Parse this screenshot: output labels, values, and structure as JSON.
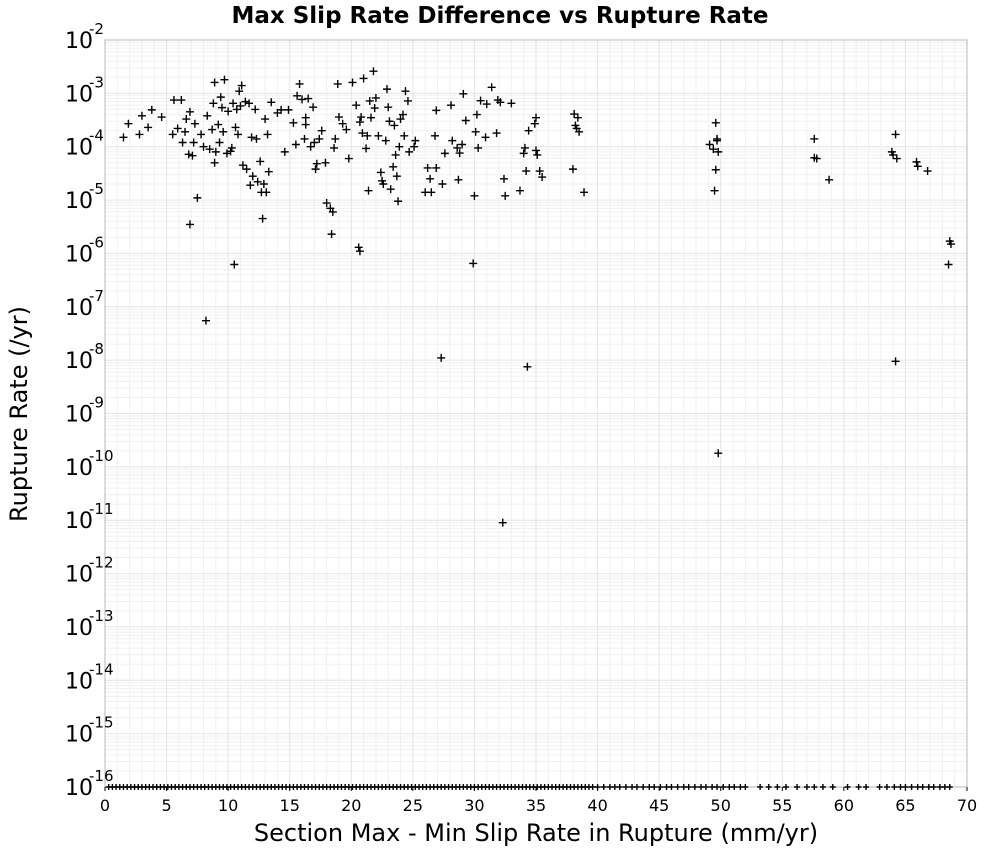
{
  "chart_data": {
    "type": "scatter",
    "title": "Max Slip Rate Difference vs Rupture Rate",
    "xlabel": "Section Max - Min Slip Rate in Rupture (mm/yr)",
    "ylabel": "Rupture Rate (/yr)",
    "xlim": [
      0,
      70
    ],
    "ylim_log10": [
      -16,
      -2
    ],
    "yscale": "log",
    "grid": true,
    "legend": "none",
    "marker": "plus",
    "marker_color": "#000000",
    "xticks": [
      "0",
      "5",
      "10",
      "15",
      "20",
      "25",
      "30",
      "35",
      "40",
      "45",
      "50",
      "55",
      "60",
      "65",
      "70"
    ],
    "yticks": [
      {
        "base": "10",
        "exp": "-2"
      },
      {
        "base": "10",
        "exp": "-3"
      },
      {
        "base": "10",
        "exp": "-4"
      },
      {
        "base": "10",
        "exp": "-5"
      },
      {
        "base": "10",
        "exp": "-6"
      },
      {
        "base": "10",
        "exp": "-7"
      },
      {
        "base": "10",
        "exp": "-8"
      },
      {
        "base": "10",
        "exp": "-9"
      },
      {
        "base": "10",
        "exp": "-10"
      },
      {
        "base": "10",
        "exp": "-11"
      },
      {
        "base": "10",
        "exp": "-12"
      },
      {
        "base": "10",
        "exp": "-13"
      },
      {
        "base": "10",
        "exp": "-14"
      },
      {
        "base": "10",
        "exp": "-15"
      },
      {
        "base": "10",
        "exp": "-16"
      }
    ],
    "points": [
      [
        1.5,
        0.00015
      ],
      [
        1.9,
        0.00027
      ],
      [
        2.8,
        0.00017
      ],
      [
        3.0,
        0.00038
      ],
      [
        3.5,
        0.00023
      ],
      [
        3.8,
        0.00049
      ],
      [
        4.6,
        0.00036
      ],
      [
        5.5,
        0.00017
      ],
      [
        5.6,
        0.00075
      ],
      [
        5.9,
        0.00022
      ],
      [
        6.2,
        0.00075
      ],
      [
        6.3,
        0.00012
      ],
      [
        6.5,
        0.00019
      ],
      [
        6.6,
        0.00033
      ],
      [
        6.8,
        7.2e-05
      ],
      [
        6.9,
        0.00045
      ],
      [
        6.9,
        3.5e-06
      ],
      [
        7.1,
        6.8e-05
      ],
      [
        7.2,
        0.00012
      ],
      [
        7.3,
        0.00027
      ],
      [
        7.5,
        1.1e-05
      ],
      [
        7.8,
        0.00017
      ],
      [
        8.0,
        0.0001
      ],
      [
        8.2,
        5.5e-08
      ],
      [
        8.3,
        0.00038
      ],
      [
        8.5,
        9e-05
      ],
      [
        8.7,
        0.00021
      ],
      [
        8.8,
        0.00065
      ],
      [
        8.9,
        5e-05
      ],
      [
        8.9,
        0.0016
      ],
      [
        9.0,
        8e-05
      ],
      [
        9.2,
        0.00026
      ],
      [
        9.3,
        0.00012
      ],
      [
        9.4,
        0.00085
      ],
      [
        9.5,
        0.00054
      ],
      [
        9.6,
        0.00019
      ],
      [
        9.7,
        0.0018
      ],
      [
        9.9,
        7.5e-05
      ],
      [
        10.0,
        0.00046
      ],
      [
        10.2,
        8.2e-05
      ],
      [
        10.3,
        9.5e-05
      ],
      [
        10.4,
        0.00065
      ],
      [
        10.5,
        6.2e-07
      ],
      [
        10.6,
        0.00023
      ],
      [
        10.7,
        0.0005
      ],
      [
        10.8,
        0.00017
      ],
      [
        10.9,
        0.0011
      ],
      [
        11.0,
        0.00058
      ],
      [
        11.1,
        0.0014
      ],
      [
        11.2,
        4.5e-05
      ],
      [
        11.4,
        0.0007
      ],
      [
        11.5,
        3.8e-05
      ],
      [
        11.7,
        0.00065
      ],
      [
        11.8,
        1.9e-05
      ],
      [
        11.9,
        0.00015
      ],
      [
        12.0,
        2.8e-05
      ],
      [
        12.2,
        0.0005
      ],
      [
        12.3,
        0.00014
      ],
      [
        12.4,
        2.2e-05
      ],
      [
        12.6,
        5.3e-05
      ],
      [
        12.7,
        1.4e-05
      ],
      [
        12.8,
        4.5e-06
      ],
      [
        12.9,
        2e-05
      ],
      [
        13.0,
        0.00033
      ],
      [
        13.1,
        1.4e-05
      ],
      [
        13.2,
        0.00017
      ],
      [
        13.3,
        3.4e-05
      ],
      [
        13.5,
        0.00068
      ],
      [
        14.0,
        0.00043
      ],
      [
        14.3,
        0.00049
      ],
      [
        14.6,
        8e-05
      ],
      [
        14.9,
        0.00049
      ],
      [
        15.3,
        0.00028
      ],
      [
        15.5,
        0.00011
      ],
      [
        15.6,
        0.0009
      ],
      [
        15.8,
        0.0015
      ],
      [
        16.0,
        0.00077
      ],
      [
        16.2,
        0.00014
      ],
      [
        16.3,
        0.00026
      ],
      [
        16.3,
        0.00035
      ],
      [
        16.5,
        0.0008
      ],
      [
        16.7,
        0.0001
      ],
      [
        16.9,
        0.00055
      ],
      [
        17.0,
        0.00012
      ],
      [
        17.1,
        3.8e-05
      ],
      [
        17.2,
        4.8e-05
      ],
      [
        17.4,
        0.00014
      ],
      [
        17.6,
        0.0002
      ],
      [
        17.9,
        5e-05
      ],
      [
        18.0,
        8.8e-06
      ],
      [
        18.3,
        7e-06
      ],
      [
        18.4,
        2.3e-06
      ],
      [
        18.5,
        6e-06
      ],
      [
        18.6,
        9.5e-05
      ],
      [
        18.7,
        0.00014
      ],
      [
        18.9,
        0.0015
      ],
      [
        19.0,
        0.00036
      ],
      [
        19.3,
        0.00027
      ],
      [
        19.6,
        0.00021
      ],
      [
        19.8,
        6e-05
      ],
      [
        20.1,
        0.0016
      ],
      [
        20.4,
        0.0006
      ],
      [
        20.6,
        1.3e-06
      ],
      [
        20.7,
        1.1e-06
      ],
      [
        20.7,
        0.00029
      ],
      [
        20.8,
        0.00036
      ],
      [
        20.9,
        0.00018
      ],
      [
        21.0,
        0.0019
      ],
      [
        21.2,
        9.3e-05
      ],
      [
        21.3,
        0.00016
      ],
      [
        21.4,
        1.5e-05
      ],
      [
        21.5,
        0.00072
      ],
      [
        21.6,
        0.00035
      ],
      [
        21.8,
        0.0026
      ],
      [
        21.9,
        0.00053
      ],
      [
        22.0,
        0.00082
      ],
      [
        22.2,
        0.00016
      ],
      [
        22.4,
        3.3e-05
      ],
      [
        22.5,
        2.3e-05
      ],
      [
        22.6,
        2e-05
      ],
      [
        22.8,
        0.00013
      ],
      [
        22.9,
        0.0012
      ],
      [
        23.0,
        0.00055
      ],
      [
        23.1,
        0.0003
      ],
      [
        23.2,
        1.6e-05
      ],
      [
        23.4,
        4.2e-05
      ],
      [
        23.5,
        0.00025
      ],
      [
        23.6,
        7e-05
      ],
      [
        23.7,
        2.8e-05
      ],
      [
        23.8,
        9.5e-06
      ],
      [
        23.9,
        0.0001
      ],
      [
        24.0,
        0.00033
      ],
      [
        24.2,
        0.0004
      ],
      [
        24.3,
        0.00016
      ],
      [
        24.4,
        0.0011
      ],
      [
        24.6,
        0.00072
      ],
      [
        24.7,
        8e-05
      ],
      [
        25.1,
        0.0001
      ],
      [
        25.2,
        0.00013
      ],
      [
        26.0,
        1.4e-05
      ],
      [
        26.2,
        4e-05
      ],
      [
        26.4,
        2.5e-05
      ],
      [
        26.5,
        1.4e-05
      ],
      [
        26.8,
        0.00016
      ],
      [
        26.9,
        4e-05
      ],
      [
        26.9,
        0.00048
      ],
      [
        27.3,
        1.1e-08
      ],
      [
        27.4,
        2e-05
      ],
      [
        27.6,
        7.5e-05
      ],
      [
        28.1,
        0.0006
      ],
      [
        28.2,
        0.00013
      ],
      [
        28.6,
        9.5e-05
      ],
      [
        28.7,
        2.4e-05
      ],
      [
        28.8,
        7.6e-05
      ],
      [
        29.0,
        0.00011
      ],
      [
        29.1,
        0.00098
      ],
      [
        29.3,
        0.00031
      ],
      [
        29.9,
        6.5e-07
      ],
      [
        30.0,
        1.2e-05
      ],
      [
        30.1,
        0.00019
      ],
      [
        30.2,
        0.0004
      ],
      [
        30.3,
        9.5e-05
      ],
      [
        30.5,
        0.00073
      ],
      [
        30.9,
        0.00015
      ],
      [
        31.0,
        0.00063
      ],
      [
        31.4,
        0.0013
      ],
      [
        31.8,
        0.00018
      ],
      [
        31.9,
        0.00075
      ],
      [
        32.1,
        0.00068
      ],
      [
        32.3,
        9e-12
      ],
      [
        32.4,
        2.5e-05
      ],
      [
        32.5,
        1.2e-05
      ],
      [
        33.0,
        0.00065
      ],
      [
        33.7,
        1.5e-05
      ],
      [
        34.0,
        7.5e-05
      ],
      [
        34.1,
        9.5e-05
      ],
      [
        34.2,
        3.5e-05
      ],
      [
        34.3,
        7.5e-09
      ],
      [
        34.4,
        0.0002
      ],
      [
        34.9,
        0.00027
      ],
      [
        35.0,
        0.00035
      ],
      [
        35.0,
        8.5e-05
      ],
      [
        35.1,
        7e-05
      ],
      [
        35.3,
        3.5e-05
      ],
      [
        35.5,
        2.7e-05
      ],
      [
        38.0,
        3.8e-05
      ],
      [
        38.1,
        0.00041
      ],
      [
        38.2,
        0.00025
      ],
      [
        38.3,
        0.00022
      ],
      [
        38.4,
        0.00035
      ],
      [
        38.5,
        0.00019
      ],
      [
        38.9,
        1.4e-05
      ],
      [
        49.1,
        0.00011
      ],
      [
        49.4,
        9e-05
      ],
      [
        49.5,
        1.5e-05
      ],
      [
        49.6,
        3.7e-05
      ],
      [
        49.6,
        0.00028
      ],
      [
        49.7,
        0.00014
      ],
      [
        49.7,
        0.00013
      ],
      [
        49.8,
        8e-05
      ],
      [
        49.8,
        1.8e-10
      ],
      [
        57.6,
        0.00014
      ],
      [
        57.6,
        6.2e-05
      ],
      [
        57.8,
        6e-05
      ],
      [
        58.8,
        2.4e-05
      ],
      [
        63.9,
        8e-05
      ],
      [
        64.0,
        7e-05
      ],
      [
        64.2,
        0.00017
      ],
      [
        64.3,
        6e-05
      ],
      [
        64.2,
        9.5e-09
      ],
      [
        65.9,
        5.2e-05
      ],
      [
        66.0,
        4.3e-05
      ],
      [
        66.8,
        3.5e-05
      ],
      [
        68.5,
        6.2e-07
      ],
      [
        68.6,
        1.7e-06
      ],
      [
        68.7,
        1.5e-06
      ]
    ],
    "floor_points_x": [
      0.3,
      0.6,
      0.9,
      1.2,
      1.5,
      1.8,
      2.1,
      2.4,
      2.7,
      3.0,
      3.3,
      3.6,
      3.9,
      4.2,
      4.5,
      4.8,
      5.1,
      5.4,
      5.7,
      6.0,
      6.3,
      6.6,
      6.9,
      7.2,
      7.5,
      7.8,
      8.1,
      8.4,
      8.7,
      9.0,
      9.3,
      9.6,
      9.9,
      10.2,
      10.5,
      10.8,
      11.1,
      11.4,
      11.7,
      12.0,
      12.3,
      12.6,
      12.9,
      13.2,
      13.5,
      13.8,
      14.1,
      14.4,
      14.7,
      15.0,
      15.3,
      15.6,
      15.9,
      16.2,
      16.5,
      16.8,
      17.1,
      17.4,
      17.7,
      18.0,
      18.3,
      18.6,
      18.9,
      19.2,
      19.5,
      19.8,
      20.1,
      20.4,
      20.7,
      21.0,
      21.3,
      21.6,
      21.9,
      22.2,
      22.5,
      22.8,
      23.1,
      23.4,
      23.7,
      24.0,
      24.3,
      24.6,
      24.9,
      25.2,
      25.5,
      25.8,
      26.1,
      26.4,
      26.7,
      27.0,
      27.3,
      27.6,
      27.9,
      28.2,
      28.5,
      28.8,
      29.1,
      29.4,
      29.7,
      30.0,
      30.3,
      30.6,
      30.9,
      31.2,
      31.5,
      31.8,
      32.1,
      32.4,
      32.7,
      33.0,
      33.3,
      33.6,
      33.9,
      34.2,
      34.5,
      34.8,
      35.1,
      35.4,
      35.7,
      36.0,
      36.3,
      36.6,
      36.9,
      37.2,
      37.5,
      37.8,
      38.1,
      38.4,
      38.7,
      39.0,
      39.3,
      39.6,
      40.0,
      40.5,
      41.0,
      41.4,
      41.8,
      42.3,
      42.8,
      43.2,
      43.7,
      44.2,
      44.6,
      45.1,
      45.6,
      46.0,
      46.5,
      47.0,
      47.4,
      47.9,
      48.4,
      48.8,
      49.3,
      49.7,
      50.2,
      50.7,
      51.1,
      51.6,
      52.0,
      53.2,
      53.9,
      54.6,
      55.3,
      56.2,
      57.0,
      57.6,
      58.3,
      59.1,
      60.3,
      61.2,
      61.8,
      62.9,
      63.5,
      64.1,
      64.6,
      65.0,
      65.5,
      66.0,
      66.4,
      66.9,
      67.3,
      67.8,
      68.2,
      68.6
    ]
  }
}
